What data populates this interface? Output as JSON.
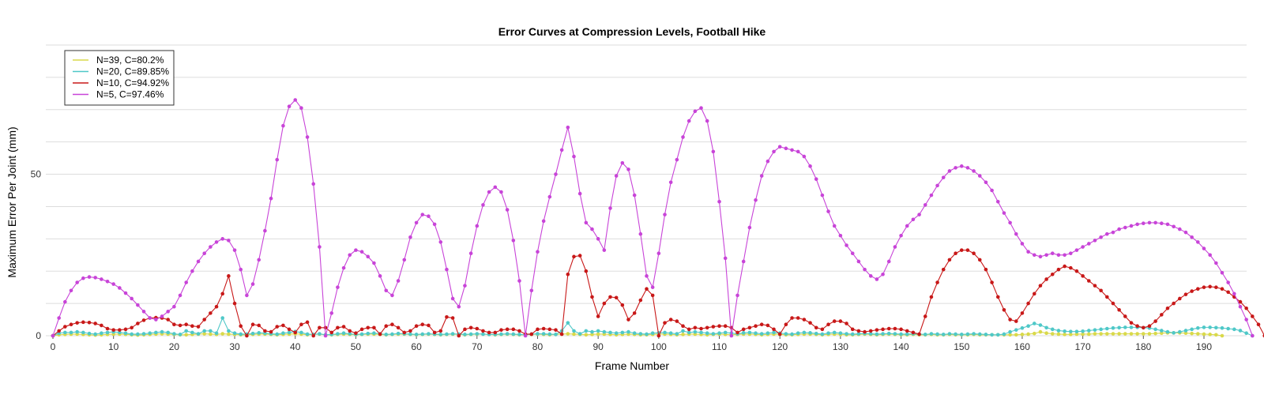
{
  "chart_data": {
    "type": "line",
    "title": "Error Curves at Compression Levels, Football Hike",
    "xlabel": "Frame Number",
    "ylabel": "Maximum Error Per Joint (mm)",
    "xlim": [
      0,
      196
    ],
    "ylim": [
      0,
      90
    ],
    "x_ticks": [
      0,
      10,
      20,
      30,
      40,
      50,
      60,
      70,
      80,
      90,
      100,
      110,
      120,
      130,
      140,
      150,
      160,
      170,
      180,
      190
    ],
    "y_ticks": [
      0,
      50
    ],
    "grid": true,
    "legend_position": "top-left",
    "x_start": 0,
    "series": [
      {
        "name": "N=39, C=80.2%",
        "color": "#d9d94a",
        "values": [
          0,
          0.3,
          0.4,
          0.5,
          0.5,
          0.4,
          0.3,
          0.2,
          0.3,
          0.4,
          0.5,
          0.5,
          0.4,
          0.3,
          0.2,
          0.3,
          0.4,
          0.5,
          0.6,
          0.5,
          0.4,
          0.3,
          0.3,
          0.4,
          0.5,
          0.6,
          0.5,
          0.4,
          0.6,
          0.5,
          0.4,
          0.3,
          0.3,
          0.4,
          0.5,
          0.5,
          0.4,
          0.3,
          0.4,
          0.5,
          0.6,
          0.5,
          0.3,
          0.4,
          0.5,
          0.3,
          0.3,
          0.4,
          0.5,
          0.4,
          0.3,
          0.4,
          0.5,
          0.5,
          0.4,
          0.3,
          0.4,
          0.5,
          0.5,
          0.4,
          0.3,
          0.4,
          0.5,
          0.4,
          0.3,
          0.4,
          0.5,
          0.4,
          0.3,
          0.4,
          0.5,
          0.5,
          0.4,
          0.3,
          0.4,
          0.5,
          0.4,
          0.3,
          0.3,
          0.4,
          0.5,
          0.4,
          0.3,
          0.4,
          0.5,
          0.6,
          0.5,
          0.4,
          0.3,
          0.4,
          0.5,
          0.5,
          0.4,
          0.3,
          0.4,
          0.5,
          0.4,
          0.3,
          0.3,
          0.4,
          0.5,
          0.5,
          0.4,
          0.3,
          0.4,
          0.5,
          0.5,
          0.4,
          0.3,
          0.4,
          0.5,
          0.4,
          0.3,
          0.4,
          0.5,
          0.5,
          0.4,
          0.3,
          0.4,
          0.5,
          0.4,
          0.3,
          0.3,
          0.4,
          0.5,
          0.5,
          0.4,
          0.3,
          0.4,
          0.5,
          0.4,
          0.3,
          0.3,
          0.4,
          0.5,
          0.4,
          0.3,
          0.4,
          0.5,
          0.4,
          0.3,
          0.3,
          0.4,
          0.3,
          0.3,
          0.4,
          0.3,
          0.3,
          0.4,
          0.3,
          0.3,
          0.3,
          0.4,
          0.3,
          0.3,
          0.3,
          0.3,
          0.3,
          0.3,
          0.3,
          0.4,
          0.5,
          0.7,
          1.2,
          0.8,
          0.6,
          0.5,
          0.4,
          0.4,
          0.5,
          0.5,
          0.5,
          0.6,
          0.6,
          0.6,
          0.6,
          0.6,
          0.6,
          0.6,
          0.6,
          0.6,
          0.6,
          0.7,
          0.8,
          0.9,
          0.9,
          0.9,
          0.8,
          0.7,
          0.6,
          0.5,
          0.4,
          0.3,
          0
        ]
      },
      {
        "name": "N=20, C=89.85%",
        "color": "#4fc8c8",
        "values": [
          0,
          0.8,
          1.0,
          1.0,
          1.2,
          1.0,
          0.7,
          0.5,
          0.8,
          1.0,
          1.2,
          1.0,
          0.8,
          0.5,
          0.5,
          0.6,
          0.8,
          1.0,
          1.2,
          1.0,
          0.6,
          0.4,
          1.5,
          1.0,
          0.6,
          1.5,
          1.5,
          0.8,
          5.5,
          1.5,
          0.8,
          0.5,
          0.5,
          0.7,
          0.9,
          0.8,
          0.6,
          0.5,
          0.8,
          1.0,
          1.3,
          1.0,
          0.5,
          0.4,
          0.6,
          0.3,
          0.4,
          0.6,
          0.8,
          0.6,
          0.4,
          0.5,
          0.7,
          0.8,
          0.6,
          0.4,
          0.5,
          0.7,
          0.6,
          0.5,
          0.4,
          0.5,
          0.6,
          0.5,
          0.4,
          0.5,
          0.6,
          0.5,
          0.4,
          0.5,
          0.6,
          0.5,
          0.4,
          0.4,
          0.5,
          0.6,
          0.5,
          0.4,
          0.3,
          0.5,
          0.6,
          0.6,
          0.5,
          0.4,
          1.5,
          4.0,
          1.5,
          0.6,
          1.5,
          1.2,
          1.5,
          1.2,
          1.0,
          0.8,
          1.0,
          1.2,
          0.8,
          0.6,
          0.5,
          0.8,
          0.9,
          1.0,
          0.8,
          0.6,
          1.5,
          1.0,
          1.2,
          1.0,
          0.8,
          0.6,
          0.8,
          1.0,
          0.8,
          0.6,
          0.9,
          1.0,
          0.8,
          0.6,
          0.8,
          1.0,
          0.8,
          0.6,
          0.5,
          0.8,
          1.0,
          0.9,
          0.7,
          0.5,
          0.8,
          1.0,
          0.8,
          0.6,
          0.5,
          0.6,
          0.7,
          0.6,
          0.5,
          0.6,
          0.7,
          0.6,
          0.5,
          0.5,
          0.6,
          0.5,
          0.4,
          0.6,
          0.5,
          0.4,
          0.6,
          0.5,
          0.4,
          0.5,
          0.6,
          0.5,
          0.4,
          0.3,
          0.3,
          0.5,
          1.2,
          1.8,
          2.4,
          3.0,
          3.8,
          3.3,
          2.5,
          2.0,
          1.6,
          1.4,
          1.3,
          1.3,
          1.4,
          1.6,
          1.8,
          2.0,
          2.2,
          2.4,
          2.5,
          2.6,
          2.6,
          2.6,
          2.5,
          2.4,
          2.0,
          1.6,
          1.2,
          0.9,
          1.2,
          1.6,
          2.0,
          2.4,
          2.6,
          2.6,
          2.5,
          2.4,
          2.2,
          2.0,
          1.6,
          0.8,
          0
        ]
      },
      {
        "name": "N=10, C=94.92%",
        "color": "#c81818",
        "values": [
          0,
          1.5,
          2.8,
          3.5,
          4.0,
          4.2,
          4.1,
          3.8,
          3.2,
          2.2,
          1.8,
          1.8,
          2.0,
          2.5,
          3.8,
          4.8,
          5.5,
          5.6,
          5.5,
          5.0,
          3.5,
          3.2,
          3.5,
          3.0,
          2.8,
          5.0,
          7.0,
          9.0,
          13.0,
          18.5,
          10.0,
          3.0,
          0,
          3.5,
          3.2,
          1.5,
          1.2,
          2.8,
          3.2,
          2.0,
          1.0,
          3.5,
          4.2,
          0,
          2.5,
          2.5,
          1.0,
          2.5,
          2.8,
          1.5,
          0.8,
          2.0,
          2.5,
          2.5,
          0.5,
          3.0,
          3.5,
          2.5,
          1.0,
          1.5,
          3.0,
          3.5,
          3.2,
          1.0,
          1.5,
          5.8,
          5.5,
          0,
          2.0,
          2.5,
          2.2,
          1.5,
          1.0,
          1.0,
          1.8,
          2.0,
          2.0,
          1.5,
          0.5,
          0.5,
          2.0,
          2.2,
          2.0,
          1.8,
          0.5,
          19.0,
          24.5,
          24.8,
          20.0,
          12.0,
          6.0,
          10.0,
          12.0,
          11.8,
          9.5,
          5.0,
          7.0,
          11.0,
          14.5,
          12.5,
          0,
          4.0,
          5.0,
          4.5,
          3.0,
          2.0,
          2.5,
          2.2,
          2.5,
          2.8,
          3.0,
          3.0,
          2.5,
          1.0,
          2.0,
          2.5,
          3.0,
          3.5,
          3.2,
          2.0,
          0.5,
          3.5,
          5.5,
          5.5,
          5.0,
          4.0,
          2.5,
          2.0,
          3.5,
          4.5,
          4.5,
          3.8,
          2.0,
          1.5,
          1.2,
          1.5,
          1.8,
          2.0,
          2.2,
          2.2,
          2.0,
          1.5,
          1.0,
          0.5,
          6.0,
          12.0,
          16.5,
          20.5,
          23.5,
          25.5,
          26.5,
          26.5,
          25.5,
          23.5,
          20.5,
          16.5,
          12.0,
          8.0,
          5.0,
          4.5,
          7.0,
          10.0,
          13.0,
          15.5,
          17.5,
          19.0,
          20.5,
          21.5,
          21.0,
          20.0,
          18.5,
          17.0,
          15.5,
          14.0,
          12.0,
          10.0,
          8.0,
          6.0,
          4.0,
          3.0,
          2.5,
          3.0,
          4.5,
          6.5,
          8.5,
          10.0,
          11.5,
          12.8,
          13.8,
          14.5,
          15.0,
          15.2,
          15.0,
          14.5,
          13.5,
          12.0,
          10.5,
          8.5,
          6.0,
          3.5,
          0
        ]
      },
      {
        "name": "N=5, C=97.46%",
        "color": "#c844d8",
        "values": [
          0,
          5.5,
          10.5,
          14.0,
          16.5,
          17.8,
          18.2,
          18.0,
          17.5,
          16.8,
          16.0,
          14.8,
          13.2,
          11.5,
          9.5,
          7.5,
          5.5,
          5.0,
          6.0,
          7.5,
          9.0,
          12.5,
          16.5,
          20.0,
          23.0,
          25.5,
          27.5,
          29.0,
          30.0,
          29.5,
          26.5,
          20.5,
          12.5,
          16.0,
          23.5,
          32.5,
          42.5,
          54.5,
          65.0,
          71.0,
          73.0,
          70.5,
          61.5,
          47.0,
          27.5,
          0,
          7.0,
          15.0,
          21.0,
          25.0,
          26.5,
          26.0,
          24.5,
          22.5,
          18.5,
          14.0,
          12.5,
          17.0,
          23.5,
          30.5,
          35.0,
          37.5,
          37.0,
          34.5,
          29.0,
          20.5,
          11.5,
          9.0,
          15.5,
          25.5,
          34.0,
          40.5,
          44.5,
          46.0,
          44.5,
          39.0,
          29.5,
          17.0,
          0,
          14.0,
          26.0,
          35.5,
          43.0,
          50.0,
          57.5,
          64.5,
          55.5,
          44.0,
          35.0,
          33.0,
          30.0,
          26.5,
          39.5,
          49.5,
          53.5,
          51.5,
          43.5,
          31.5,
          18.5,
          15.0,
          25.5,
          37.5,
          47.5,
          54.5,
          61.5,
          66.5,
          69.5,
          70.5,
          66.5,
          57.0,
          41.5,
          24.0,
          0,
          12.5,
          23.0,
          33.5,
          42.0,
          49.5,
          54.0,
          57.0,
          58.5,
          58.0,
          57.5,
          57.0,
          55.5,
          52.5,
          48.5,
          43.5,
          38.5,
          34.0,
          31.0,
          28.0,
          25.5,
          23.0,
          20.5,
          18.5,
          17.5,
          19.0,
          23.0,
          27.5,
          31.0,
          34.0,
          36.0,
          37.5,
          40.5,
          43.5,
          46.5,
          49.0,
          51.0,
          52.0,
          52.5,
          52.0,
          51.0,
          49.5,
          47.5,
          45.0,
          41.5,
          38.0,
          35.0,
          31.5,
          28.5,
          26.0,
          25.0,
          24.5,
          25.0,
          25.5,
          25.0,
          25.0,
          25.5,
          26.5,
          27.5,
          28.5,
          29.5,
          30.5,
          31.5,
          32.0,
          33.0,
          33.5,
          34.0,
          34.5,
          34.8,
          35.0,
          35.0,
          34.8,
          34.5,
          33.8,
          33.0,
          32.0,
          30.5,
          29.0,
          27.0,
          25.0,
          22.5,
          19.5,
          16.5,
          13.0,
          9.0,
          5.0,
          0
        ]
      }
    ]
  }
}
